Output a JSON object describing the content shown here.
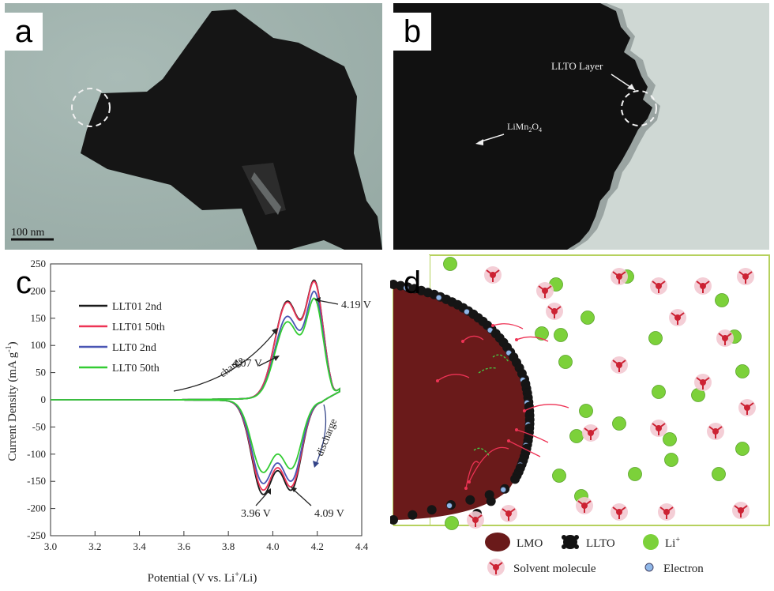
{
  "panels": {
    "a": {
      "letter": "a",
      "scale_label": "100 nm"
    },
    "b": {
      "letter": "b",
      "annotations": {
        "layer": "LLTO Layer",
        "core_base": "LiMn",
        "core_sub1": "2",
        "core_mid": "O",
        "core_sub2": "4"
      }
    },
    "c": {
      "letter": "c"
    },
    "d": {
      "letter": "d",
      "legend": {
        "lmo": "LMO",
        "llto": "LLTO",
        "li_base": "Li",
        "li_sup": "+",
        "solvent": "Solvent molecule",
        "electron": "Electron"
      }
    }
  },
  "chart_data": {
    "type": "line",
    "xlabel_base": "Potential (V vs. Li",
    "xlabel_sup": "+",
    "xlabel_tail": "/Li)",
    "ylabel_base": "Current Density (mA g",
    "ylabel_sup": "-1",
    "ylabel_tail": ")",
    "xlim": [
      3.0,
      4.4
    ],
    "ylim": [
      -250,
      250
    ],
    "xticks": [
      "3.0",
      "3.2",
      "3.4",
      "3.6",
      "3.8",
      "4.0",
      "4.2",
      "4.4"
    ],
    "yticks": [
      "250",
      "200",
      "150",
      "100",
      "50",
      "0",
      "-50",
      "-100",
      "-150",
      "-200",
      "-250"
    ],
    "legend_position": "top-left",
    "series": [
      {
        "name": "LLT01 2nd",
        "color": "#1a1a1a",
        "peaks": {
          "ox1": 178,
          "ox2": 202,
          "red1": -170,
          "red2": -158
        }
      },
      {
        "name": "LLT01 50th",
        "color": "#ee3355",
        "peaks": {
          "ox1": 176,
          "ox2": 200,
          "red1": -162,
          "red2": -152
        }
      },
      {
        "name": "LLT0  2nd",
        "color": "#4a56b4",
        "peaks": {
          "ox1": 150,
          "ox2": 184,
          "red1": -150,
          "red2": -142
        }
      },
      {
        "name": "LLT0   50th",
        "color": "#33cc33",
        "peaks": {
          "ox1": 140,
          "ox2": 172,
          "red1": -130,
          "red2": -120
        }
      }
    ],
    "annotations": [
      {
        "text": "4.07 V"
      },
      {
        "text": "4.19 V"
      },
      {
        "text": "3.96 V"
      },
      {
        "text": "4.09 V"
      },
      {
        "text": "charge"
      },
      {
        "text": "discharge"
      }
    ]
  }
}
